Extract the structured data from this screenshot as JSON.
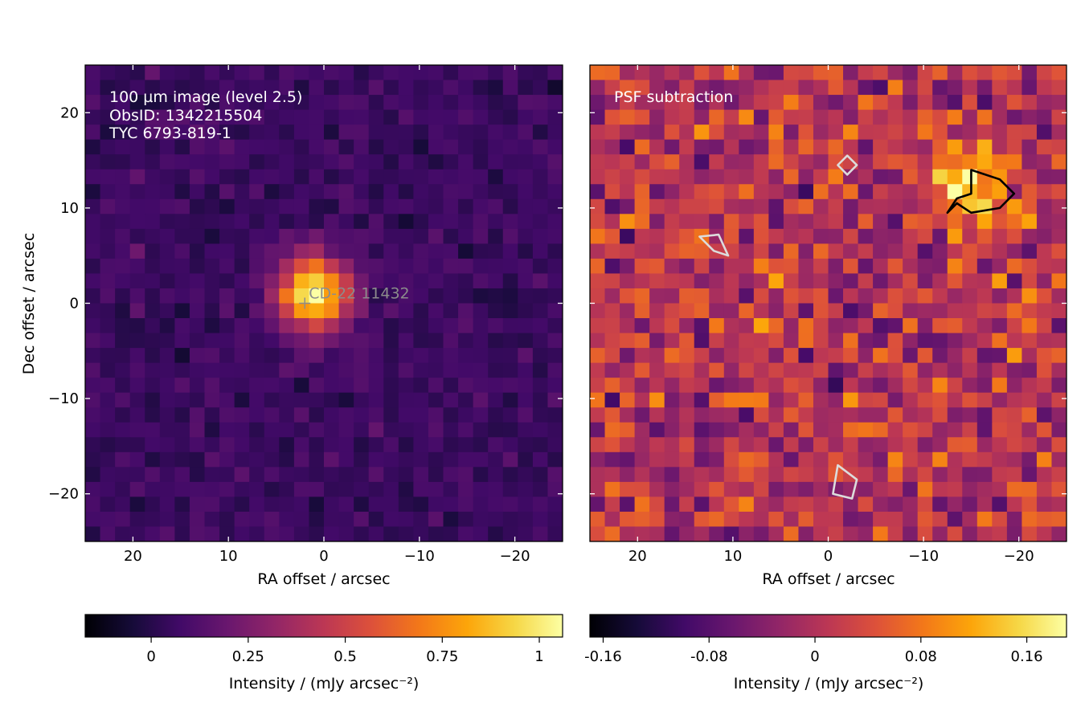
{
  "colors": {
    "colormap": "inferno",
    "contour_light": "#dcdcdc",
    "contour_dark": "#000000",
    "marker": "#8c8c8c"
  },
  "chart_data": [
    {
      "type": "heatmap",
      "panel": "left",
      "annotation_lines": [
        "100 µm image (level 2.5)",
        "ObsID: 1342215504",
        "TYC 6793-819-1"
      ],
      "source_label": "CD-22 11432",
      "source_marker": [
        2,
        0
      ],
      "xlabel": "RA offset / arcsec",
      "ylabel": "Dec offset / arcsec",
      "xlim": [
        25,
        -25
      ],
      "ylim": [
        -25,
        25
      ],
      "xticks": [
        20,
        10,
        0,
        -10,
        -20
      ],
      "xtick_labels": [
        "20",
        "10",
        "0",
        "−10",
        "−20"
      ],
      "yticks": [
        20,
        10,
        0,
        -10,
        -20
      ],
      "ytick_labels": [
        "20",
        "10",
        "0",
        "−10",
        "−20"
      ],
      "grid": false,
      "pixel_size_arcsec": 1.6,
      "background_level": 0.06,
      "source_peak": 1.0,
      "source_fwhm_arcsec": 6.5,
      "colorbar": {
        "label": "Intensity / (mJy arcsec⁻²)",
        "range": [
          -0.17,
          1.06
        ],
        "ticks": [
          0,
          0.25,
          0.5,
          0.75,
          1
        ],
        "tick_labels": [
          "0",
          "0.25",
          "0.5",
          "0.75",
          "1"
        ]
      }
    },
    {
      "type": "heatmap",
      "panel": "right",
      "annotation_lines": [
        "PSF subtraction"
      ],
      "xlabel": "RA offset / arcsec",
      "xlim": [
        25,
        -25
      ],
      "ylim": [
        -25,
        25
      ],
      "xticks": [
        20,
        10,
        0,
        -10,
        -20
      ],
      "xtick_labels": [
        "20",
        "10",
        "0",
        "−10",
        "−20"
      ],
      "grid": false,
      "pixel_size_arcsec": 1.6,
      "residual_blob": {
        "center": [
          -16,
          12
        ],
        "peak": 0.17
      },
      "contours": [
        {
          "level": "positive",
          "color": "black",
          "points": [
            [
              -15,
              14
            ],
            [
              -18,
              13
            ],
            [
              -19.5,
              11.5
            ],
            [
              -18,
              10
            ],
            [
              -15,
              9.5
            ],
            [
              -13.5,
              10.5
            ],
            [
              -12.5,
              9.5
            ],
            [
              -13.5,
              11
            ],
            [
              -15,
              11.5
            ]
          ]
        },
        {
          "level": "negative",
          "color": "white",
          "points": [
            [
              13.5,
              7
            ],
            [
              11.5,
              7.2
            ],
            [
              10.5,
              5
            ],
            [
              12,
              5.5
            ]
          ]
        },
        {
          "level": "negative",
          "color": "white",
          "points": [
            [
              -2,
              15.5
            ],
            [
              -1,
              14.5
            ],
            [
              -2,
              13.5
            ],
            [
              -3,
              14.5
            ]
          ]
        },
        {
          "level": "negative",
          "color": "white",
          "points": [
            [
              -1,
              -17
            ],
            [
              -3,
              -18.5
            ],
            [
              -2.5,
              -20.5
            ],
            [
              -0.5,
              -20
            ]
          ]
        }
      ],
      "colorbar": {
        "label": "Intensity / (mJy arcsec⁻²)",
        "range": [
          -0.17,
          0.19
        ],
        "ticks": [
          -0.16,
          -0.08,
          0,
          0.08,
          0.16
        ],
        "tick_labels": [
          "-0.16",
          "-0.08",
          "0",
          "0.08",
          "0.16"
        ]
      }
    }
  ]
}
